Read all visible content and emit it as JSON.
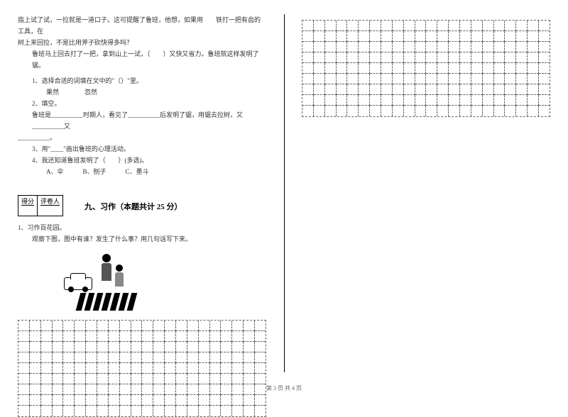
{
  "left": {
    "passage": {
      "l1": "指上试了试，一拉就是一道口子。这可提醒了鲁班，他想，如果用　　铁打一把有齿的工具，在",
      "l2": "树上来回拉，不是比用斧子砍快得多吗？",
      "l3": "鲁班马上回去打了一把，拿到山上一试，（　　）又快又省力。鲁班就这样发明了锯。"
    },
    "q1": {
      "label": "1、选择合适的词填在文中的\"（）\"里。",
      "opts": "果然　　　　忽然"
    },
    "q2": {
      "label": "2、填空。",
      "blank": "鲁班是__________时期人，看见了__________后发明了锯，用锯去拉树，又__________又"
    },
    "q2b": "__________。",
    "q3": "3、用\"____\"画出鲁班的心理活动。",
    "q4": {
      "label": "4、我还知道鲁班发明了（　　）(多选)。",
      "opts": "A、伞　　　B、刨子　　　C、墨斗"
    },
    "scoreTable": {
      "c1": "得分",
      "c2": "评卷人"
    },
    "section": "九、习作（本题共计 25 分）",
    "writing": {
      "title": "1、习作百花园。",
      "prompt": "观察下图，图中有谁？发生了什么事？用几句话写下来。"
    },
    "gridLeft": {
      "rows": 9,
      "cols": 22
    }
  },
  "right": {
    "grid": {
      "rows": 9,
      "cols": 22
    }
  },
  "footer": "第 3 页 共 4 页"
}
